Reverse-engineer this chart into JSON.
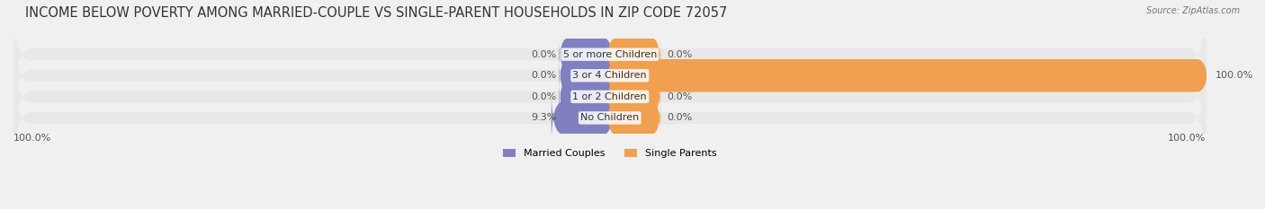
{
  "title": "INCOME BELOW POVERTY AMONG MARRIED-COUPLE VS SINGLE-PARENT HOUSEHOLDS IN ZIP CODE 72057",
  "source": "Source: ZipAtlas.com",
  "categories": [
    "No Children",
    "1 or 2 Children",
    "3 or 4 Children",
    "5 or more Children"
  ],
  "married_values": [
    9.3,
    0.0,
    0.0,
    0.0
  ],
  "single_values": [
    0.0,
    0.0,
    100.0,
    0.0
  ],
  "married_color": "#8080c0",
  "single_color": "#f0a050",
  "bar_height": 0.55,
  "xlim": 100,
  "background_color": "#f0f0f0",
  "bar_bg_color": "#e8e8e8",
  "title_fontsize": 10.5,
  "label_fontsize": 8,
  "category_fontsize": 8,
  "legend_fontsize": 8
}
